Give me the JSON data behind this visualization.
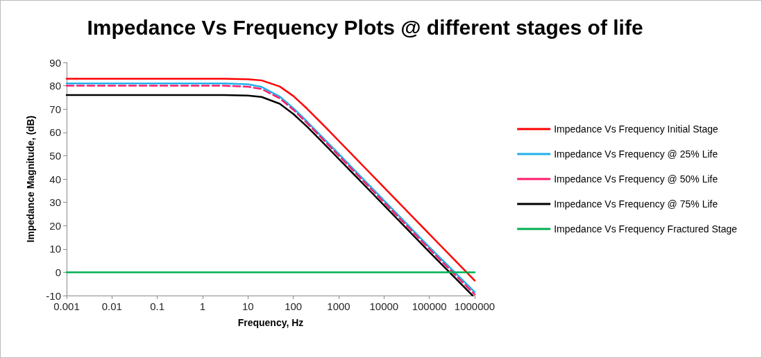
{
  "chart_data": {
    "type": "line",
    "title": "Impedance Vs Frequency Plots @ different stages of life",
    "xlabel": "Frequency, Hz",
    "ylabel": "Impedance Magnitude, (dB)",
    "log": "x",
    "xlim": [
      0.001,
      1000000
    ],
    "xticks": [
      0.001,
      0.01,
      0.1,
      1,
      10,
      100,
      1000,
      10000,
      100000,
      1000000
    ],
    "ylim": [
      -10,
      90
    ],
    "yticks": [
      -10,
      0,
      10,
      20,
      30,
      40,
      50,
      60,
      70,
      80,
      90
    ],
    "grid": false,
    "legend": "right",
    "marker": "none",
    "line_style": "solid",
    "series": [
      {
        "name": "Impedance Vs Frequency Initial Stage",
        "color": "#ff0000",
        "x": [
          0.001,
          0.01,
          0.1,
          1,
          3,
          10,
          20,
          50,
          100,
          200,
          500,
          1000,
          10000,
          100000,
          1000000
        ],
        "values": [
          83,
          83,
          83,
          83,
          83,
          82.8,
          82.3,
          79.7,
          75.6,
          70.2,
          62.4,
          56.4,
          36.4,
          16.4,
          -3.6
        ]
      },
      {
        "name": "Impedance Vs Frequency @ 25% Life",
        "color": "#1fb0ea",
        "x": [
          0.001,
          0.01,
          0.1,
          1,
          3,
          10,
          20,
          50,
          100,
          200,
          500,
          1000,
          10000,
          100000,
          1000000
        ],
        "values": [
          81,
          81,
          81,
          81,
          81,
          80.6,
          79.5,
          75.4,
          70.4,
          64.7,
          56.8,
          50.8,
          30.8,
          10.8,
          -8.5
        ]
      },
      {
        "name": "Impedance Vs Frequency @ 50% Life",
        "color": "#ff1c6e",
        "line_style": "dashed",
        "x": [
          0.001,
          0.01,
          0.1,
          1,
          3,
          10,
          20,
          50,
          100,
          200,
          500,
          1000,
          10000,
          100000,
          1000000
        ],
        "values": [
          80,
          80,
          80,
          80,
          80,
          79.6,
          78.6,
          74.6,
          69.7,
          64,
          56.1,
          50.1,
          30,
          10,
          -9.5
        ]
      },
      {
        "name": "Impedance Vs Frequency @ 75% Life",
        "color": "#000000",
        "x": [
          0.001,
          0.01,
          0.1,
          1,
          3,
          10,
          20,
          50,
          100,
          200,
          500,
          1000,
          10000,
          100000,
          900000
        ],
        "values": [
          76,
          76,
          76,
          76,
          76,
          75.8,
          75.2,
          72.3,
          67.9,
          62.5,
          54.7,
          48.7,
          28.7,
          8.7,
          -10
        ]
      },
      {
        "name": "Impedance Vs Frequency Fractured Stage",
        "color": "#00b050",
        "x": [
          0.001,
          1000000
        ],
        "values": [
          0,
          0
        ]
      }
    ]
  }
}
